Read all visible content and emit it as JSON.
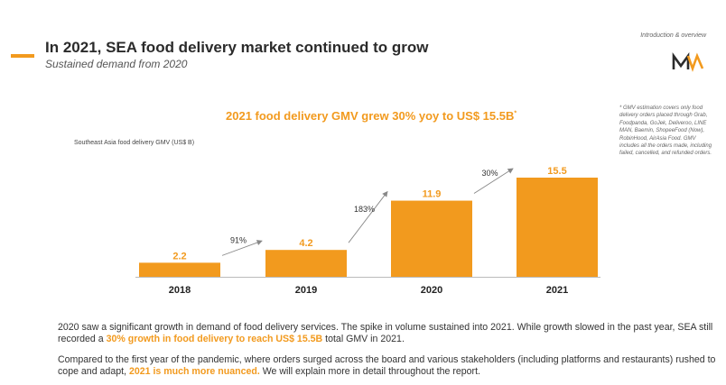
{
  "header": {
    "title": "In 2021, SEA food delivery market continued to grow",
    "subtitle": "Sustained demand from 2020",
    "section_label": "Introduction & overview"
  },
  "brand": {
    "accent_color": "#f29a1e",
    "logo_icon": "mw-logo-icon"
  },
  "footnote": "* GMV estimation covers only food delivery orders placed through Grab, Foodpanda, GoJek, Deliveroo, LINE MAN, Baemin, ShopeeFood (Now), RobinHood, AirAsia Food. GMV includes all the orders made, including failed, cancelled, and refunded orders.",
  "chart_data": {
    "type": "bar",
    "title": "2021 food delivery GMV grew 30% yoy to US$ 15.5B",
    "title_mark": "*",
    "ylabel": "Southeast Asia food delivery GMV (US$ B)",
    "categories": [
      "2018",
      "2019",
      "2020",
      "2021"
    ],
    "values": [
      2.2,
      4.2,
      11.9,
      15.5
    ],
    "value_labels": [
      "2.2",
      "4.2",
      "11.9",
      "15.5"
    ],
    "growth_labels": [
      "91%",
      "183%",
      "30%"
    ],
    "ylim": [
      0,
      15.5
    ],
    "bar_color": "#f29a1e",
    "grid": false
  },
  "body": {
    "p1": [
      {
        "text": "2020 saw a significant growth in demand of food delivery services. The spike in volume sustained into 2021. While growth slowed in the past year, SEA still recorded a ",
        "hl": false
      },
      {
        "text": "30% growth in food delivery to reach US$ 15.5B",
        "hl": true
      },
      {
        "text": " total GMV in 2021.",
        "hl": false
      }
    ],
    "p2": [
      {
        "text": "Compared to the first year of the pandemic, where orders surged across the board and various stakeholders (including platforms and restaurants) rushed to cope and adapt, ",
        "hl": false
      },
      {
        "text": "2021 is much more nuanced.",
        "hl": true
      },
      {
        "text": " We will explain more in detail throughout the report.",
        "hl": false
      }
    ]
  }
}
